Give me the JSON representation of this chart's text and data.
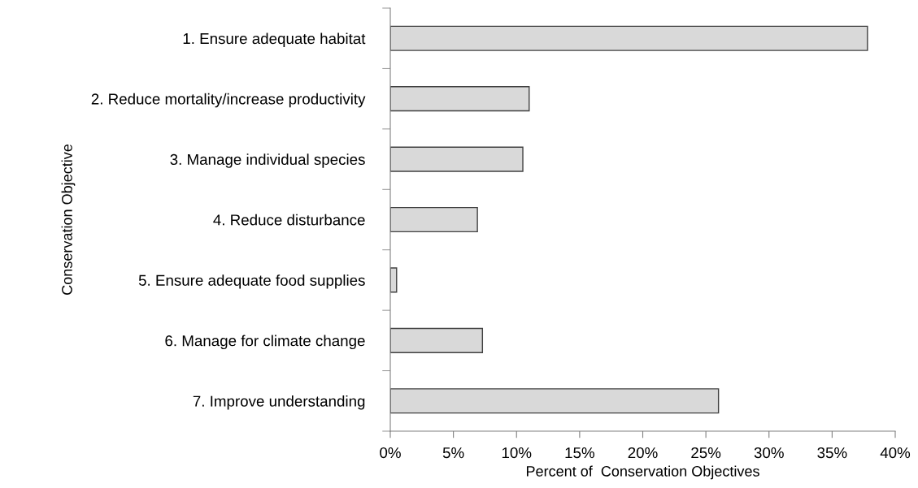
{
  "chart_data": {
    "type": "bar",
    "orientation": "horizontal",
    "xlabel": "Percent of  Conservation Objectives",
    "ylabel": "Conservation Objective",
    "categories": [
      "1. Ensure adequate habitat",
      "2. Reduce mortality/increase productivity",
      "3. Manage individual species",
      "4. Reduce disturbance",
      "5. Ensure adequate food supplies",
      "6. Manage for climate change",
      "7. Improve understanding"
    ],
    "values": [
      37.8,
      11.0,
      10.5,
      6.9,
      0.5,
      7.3,
      26.0
    ],
    "color": "#d9d9d9",
    "xlim": [
      0,
      40
    ],
    "xticks": [
      {
        "value": 0,
        "label": "0%"
      },
      {
        "value": 5,
        "label": "5%"
      },
      {
        "value": 10,
        "label": "10%"
      },
      {
        "value": 15,
        "label": "15%"
      },
      {
        "value": 20,
        "label": "20%"
      },
      {
        "value": 25,
        "label": "25%"
      },
      {
        "value": 30,
        "label": "30%"
      },
      {
        "value": 35,
        "label": "35%"
      },
      {
        "value": 40,
        "label": "40%"
      }
    ],
    "grid": false,
    "legend": false
  }
}
